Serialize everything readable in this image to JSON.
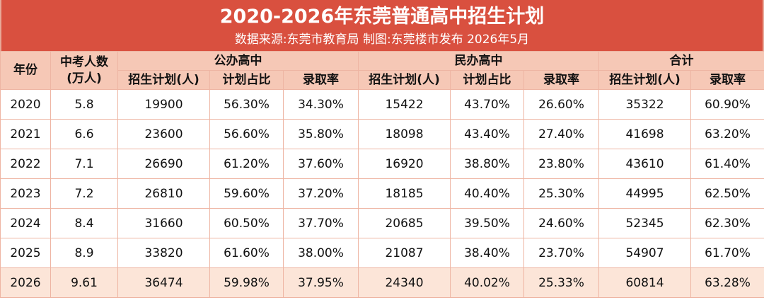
{
  "title": "2020-2026年东莞普通高中招生计划",
  "subtitle": "数据来源:东莞市教育局  制图:东莞楼市发布  2026年5月",
  "headers": {
    "year": "年份",
    "exam_count_line1": "中考人数",
    "exam_count_line2": "(万人)",
    "public_group": "公办高中",
    "private_group": "民办高中",
    "total_group": "合计",
    "plan": "招生计划(人)",
    "ratio": "计划占比",
    "rate": "录取率"
  },
  "rows": [
    {
      "year": "2020",
      "exam": "5.8",
      "pub_plan": "19900",
      "pub_ratio": "56.30%",
      "pub_rate": "34.30%",
      "pri_plan": "15422",
      "pri_ratio": "43.70%",
      "pri_rate": "26.60%",
      "tot_plan": "35322",
      "tot_rate": "60.90%"
    },
    {
      "year": "2021",
      "exam": "6.6",
      "pub_plan": "23600",
      "pub_ratio": "56.60%",
      "pub_rate": "35.80%",
      "pri_plan": "18098",
      "pri_ratio": "43.40%",
      "pri_rate": "27.40%",
      "tot_plan": "41698",
      "tot_rate": "63.20%"
    },
    {
      "year": "2022",
      "exam": "7.1",
      "pub_plan": "26690",
      "pub_ratio": "61.20%",
      "pub_rate": "37.60%",
      "pri_plan": "16920",
      "pri_ratio": "38.80%",
      "pri_rate": "23.80%",
      "tot_plan": "43610",
      "tot_rate": "61.40%"
    },
    {
      "year": "2023",
      "exam": "7.2",
      "pub_plan": "26810",
      "pub_ratio": "59.60%",
      "pub_rate": "37.20%",
      "pri_plan": "18185",
      "pri_ratio": "40.40%",
      "pri_rate": "25.30%",
      "tot_plan": "44995",
      "tot_rate": "62.50%"
    },
    {
      "year": "2024",
      "exam": "8.4",
      "pub_plan": "31660",
      "pub_ratio": "60.50%",
      "pub_rate": "37.70%",
      "pri_plan": "20685",
      "pri_ratio": "39.50%",
      "pri_rate": "24.60%",
      "tot_plan": "52345",
      "tot_rate": "62.30%"
    },
    {
      "year": "2025",
      "exam": "8.9",
      "pub_plan": "33820",
      "pub_ratio": "61.60%",
      "pub_rate": "38.00%",
      "pri_plan": "21087",
      "pri_ratio": "38.40%",
      "pri_rate": "23.70%",
      "tot_plan": "54907",
      "tot_rate": "61.70%"
    },
    {
      "year": "2026",
      "exam": "9.61",
      "pub_plan": "36474",
      "pub_ratio": "59.98%",
      "pub_rate": "37.95%",
      "pri_plan": "24340",
      "pri_ratio": "40.02%",
      "pri_rate": "25.33%",
      "tot_plan": "60814",
      "tot_rate": "63.28%"
    }
  ],
  "highlight_year": "2026",
  "colors": {
    "title_bg": "#d9503f",
    "header_bg": "#f6c8b6",
    "highlight_row_bg": "#fce5d8",
    "border": "#eeb5a3"
  }
}
